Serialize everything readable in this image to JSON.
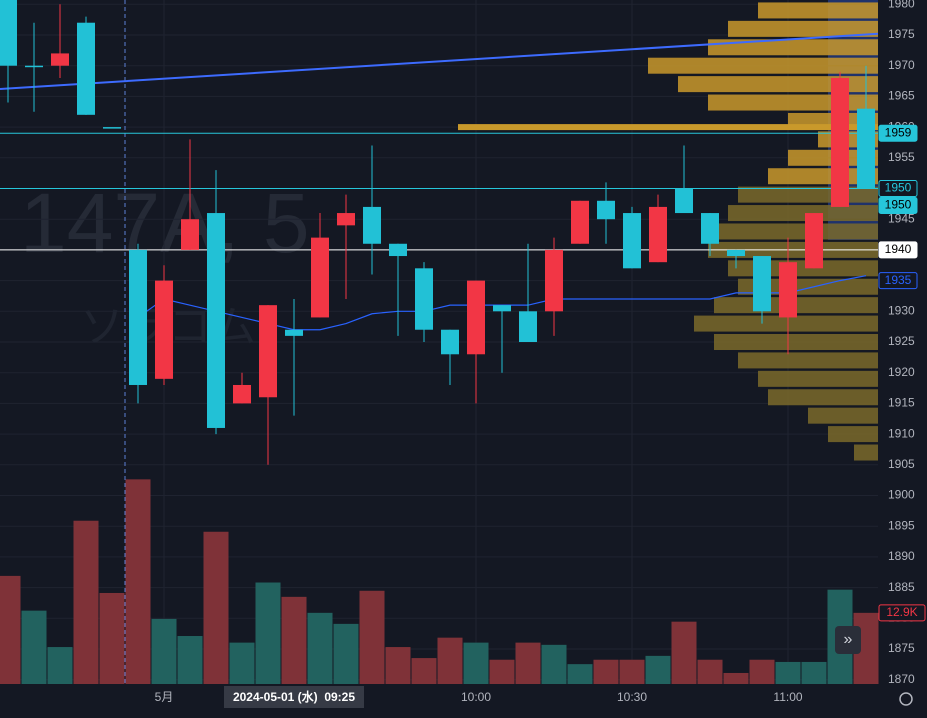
{
  "chart_data": {
    "type": "candlestick",
    "watermark": "147A, 5",
    "watermark_sub": "ソラコム",
    "categories": [
      null,
      null,
      null,
      null,
      null,
      null,
      "5月",
      null,
      null,
      null,
      null,
      null,
      null,
      null,
      null,
      null,
      null,
      null,
      "10:00",
      null,
      null,
      null,
      null,
      null,
      "10:30",
      null,
      null,
      null,
      null,
      null,
      "11:00",
      null,
      null,
      null
    ],
    "crosshair": {
      "index": 11,
      "label": "2024-05-01 (水)  09:25"
    },
    "open": [
      1970,
      1970,
      1972,
      1962,
      1960,
      1918,
      1935,
      1945,
      1911,
      1918,
      1931,
      1926,
      1942,
      1946,
      1941,
      1939,
      1927,
      1923,
      1935,
      1930,
      1925,
      1940,
      1948,
      1945,
      1937,
      1947,
      1946,
      1941,
      1939,
      1930,
      1938,
      1946,
      1968,
      1950
    ],
    "high": [
      1982,
      1977,
      1980,
      1978,
      1960,
      1941,
      1937.5,
      1958,
      1953,
      1920,
      1931,
      1932,
      1946,
      1949,
      1957,
      1941,
      1938,
      1927,
      1935,
      1931,
      1941,
      1942,
      1948,
      1951,
      1947,
      1949,
      1957,
      1946,
      1940,
      1939,
      1942,
      1946,
      1969,
      1970
    ],
    "low": [
      1964,
      1962.5,
      1968,
      1962,
      1960,
      1915,
      1918,
      1940,
      1910,
      1915,
      1905,
      1913,
      1929,
      1932,
      1936,
      1926,
      1925,
      1918,
      1915,
      1920,
      1925,
      1926,
      1941,
      1941,
      1937,
      1938,
      1946,
      1939,
      1937,
      1928,
      1923,
      1937,
      1947,
      1950
    ],
    "close": [
      1981,
      1970,
      1970,
      1977,
      1960,
      1940,
      1919,
      1940,
      1946,
      1915,
      1916,
      1927,
      1929,
      1944,
      1947,
      1941,
      1937,
      1927,
      1923,
      1931,
      1930,
      1930,
      1941,
      1948,
      1946,
      1938,
      1950,
      1946,
      1940,
      1939,
      1929,
      1937,
      1947,
      1963
    ],
    "up_color": "#22c1d6",
    "down_color": "#f23645",
    "ma": [
      null,
      null,
      null,
      null,
      null,
      1929,
      1932,
      1931,
      1930,
      1929,
      1928,
      1927,
      1927,
      1928,
      1929.6,
      1930,
      1930,
      1931,
      1931,
      1931,
      1931,
      1932,
      1932,
      1932,
      1932,
      1932,
      1932,
      1932,
      1933,
      1933,
      1933,
      1934,
      1935,
      1935.8
    ],
    "ma_color": "#2962ff",
    "trendline": [
      1966.2,
      1975.2
    ],
    "trendline_color": "#3d6bff",
    "levels": [
      {
        "value": 1959,
        "color": "#26c6da"
      },
      {
        "value": 1950,
        "color": "#26c6da"
      },
      {
        "value": 1940,
        "color": "#ffffff"
      }
    ],
    "axis_labels": [
      {
        "value": 1959,
        "label": "1959",
        "bg": "#26c6da",
        "fg": "#000000"
      },
      {
        "value": 1950,
        "label": "1950",
        "bg": "#131722",
        "fg": "#26c6da"
      },
      {
        "value": 1950,
        "label": "1950",
        "bg": "#26c6da",
        "fg": "#000000"
      },
      {
        "value": 1940,
        "label": "1940",
        "bg": "#ffffff",
        "fg": "#000000"
      },
      {
        "value": 1935,
        "label": "1935",
        "bg": "#131722",
        "fg": "#2962ff"
      }
    ],
    "ylim": [
      1869.3,
      1980.7
    ],
    "yticks": [
      1870,
      1875,
      1880,
      1885,
      1890,
      1895,
      1900,
      1905,
      1910,
      1915,
      1920,
      1925,
      1930,
      1935,
      1940,
      1945,
      1950,
      1955,
      1960,
      1965,
      1970,
      1975,
      1980
    ],
    "volume": [
      19.6,
      13.3,
      6.7,
      29.6,
      16.5,
      37.1,
      11.8,
      8.7,
      27.6,
      7.5,
      18.4,
      15.8,
      12.9,
      10.9,
      16.9,
      6.7,
      4.7,
      8.4,
      7.5,
      4.4,
      7.5,
      7.1,
      3.6,
      4.4,
      4.4,
      5.1,
      11.3,
      4.4,
      2,
      4.4,
      4,
      4,
      17.1,
      12.9
    ],
    "volume_colors": [
      "d",
      "u",
      "u",
      "d",
      "d",
      "d",
      "u",
      "u",
      "d",
      "u",
      "u",
      "d",
      "u",
      "u",
      "d",
      "d",
      "d",
      "d",
      "u",
      "d",
      "d",
      "u",
      "u",
      "d",
      "d",
      "u",
      "d",
      "d",
      "d",
      "d",
      "u",
      "u",
      "u",
      "d"
    ],
    "volume_ylim": [
      0,
      124
    ],
    "volume_label": {
      "value": 12.9,
      "label": "12.9K"
    },
    "profile_levels": [
      1979,
      1976,
      1973,
      1970,
      1967,
      1964,
      1961,
      1958,
      1955,
      1952,
      1949,
      1946,
      1943,
      1940,
      1937,
      1934,
      1931,
      1928,
      1925,
      1922,
      1919,
      1916,
      1913,
      1910,
      1907
    ],
    "profile_values": [
      60,
      75,
      85,
      115,
      100,
      85,
      45,
      30,
      45,
      55,
      70,
      75,
      82,
      85,
      75,
      70,
      82,
      92,
      82,
      70,
      60,
      55,
      35,
      25,
      12
    ],
    "profile_poc": {
      "value": 1960,
      "size": 210
    },
    "profile_upper_color": "#c9992b",
    "profile_lower_color": "#7a6a2a"
  }
}
